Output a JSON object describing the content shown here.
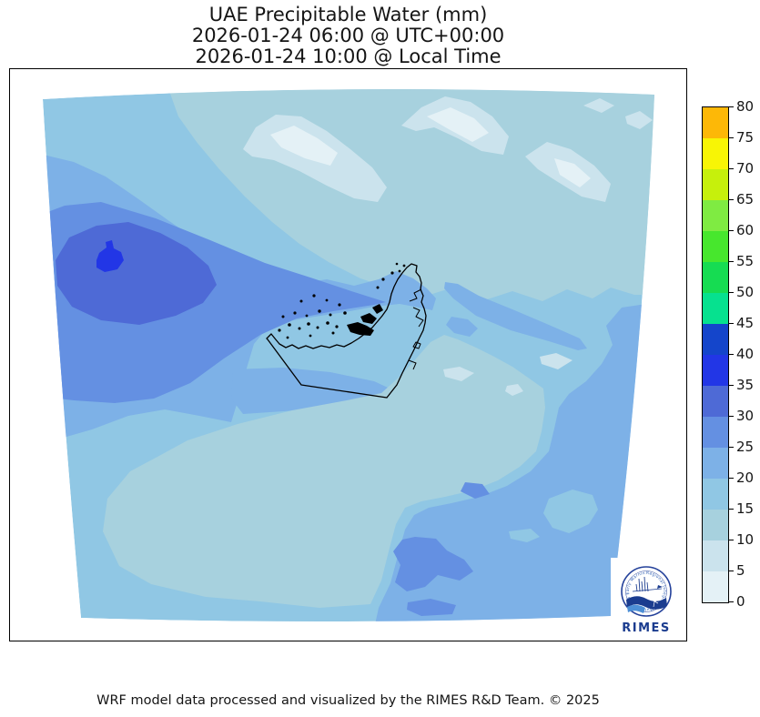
{
  "title": {
    "line1": "UAE Precipitable Water (mm)",
    "line2": "2026-01-24 06:00 @ UTC+00:00",
    "line3": "2026-01-24 10:00 @ Local Time"
  },
  "footer": "WRF model data processed and visualized by the RIMES R&D Team. © 2025",
  "logo": {
    "ring_text": "Regional Integrated Multi-Hazard Early Warning System",
    "wordmark": "RIMES",
    "navy": "#1B3C8F",
    "light_blue": "#4D8FD6"
  },
  "colorbar": {
    "tick_labels": [
      80,
      75,
      70,
      65,
      60,
      55,
      50,
      45,
      40,
      35,
      30,
      25,
      20,
      15,
      10,
      5,
      0
    ],
    "segments_top_to_bottom": [
      "#FDB807",
      "#F8F505",
      "#C6F00C",
      "#7FEB42",
      "#47E72D",
      "#16DC52",
      "#06E18F",
      "#1445CB",
      "#2236E6",
      "#4E6AD6",
      "#6490E2",
      "#7DB1E7",
      "#90C7E4",
      "#A7D1DE",
      "#CBE3ED",
      "#E4F1F6"
    ]
  },
  "map_palette": {
    "0-5": "#E4F1F6",
    "5-10": "#CBE3ED",
    "10-15": "#A7D1DE",
    "15-20": "#90C7E4",
    "20-25": "#7DB1E7",
    "25-30": "#6490E2",
    "30-35": "#4E6AD6",
    "35-40": "#2236E6",
    "boundary": "#000000"
  },
  "chart_data": {
    "type": "heatmap",
    "subtype": "filled-contour-map",
    "title": "UAE Precipitable Water (mm)",
    "time_utc": "2026-01-24 06:00 @ UTC+00:00",
    "time_local": "2026-01-24 10:00 @ Local Time",
    "variable": "Precipitable Water",
    "units": "mm",
    "contour_levels": [
      0,
      5,
      10,
      15,
      20,
      25,
      30,
      35,
      40,
      45,
      50,
      55,
      60,
      65,
      70,
      75,
      80
    ],
    "displayed_value_range": [
      0,
      40
    ],
    "legend_position": "right vertical colorbar",
    "grid": false,
    "regions": [
      {
        "area": "northwest Persian Gulf tongue",
        "value_mm": "25-40, maximum small core 35-40"
      },
      {
        "area": "north / Zagros mountains (top-centre)",
        "value_mm": "0-10 patches over 10-15 background"
      },
      {
        "area": "UAE land and centre of domain",
        "value_mm": "15-20"
      },
      {
        "area": "south-central desert",
        "value_mm": "10-15 with small 5-10 pockets"
      },
      {
        "area": "Gulf of Oman streaks east of UAE",
        "value_mm": "20-25"
      },
      {
        "area": "southeast corner",
        "value_mm": "20-25 with 25-30 blobs near bottom-centre"
      }
    ]
  }
}
